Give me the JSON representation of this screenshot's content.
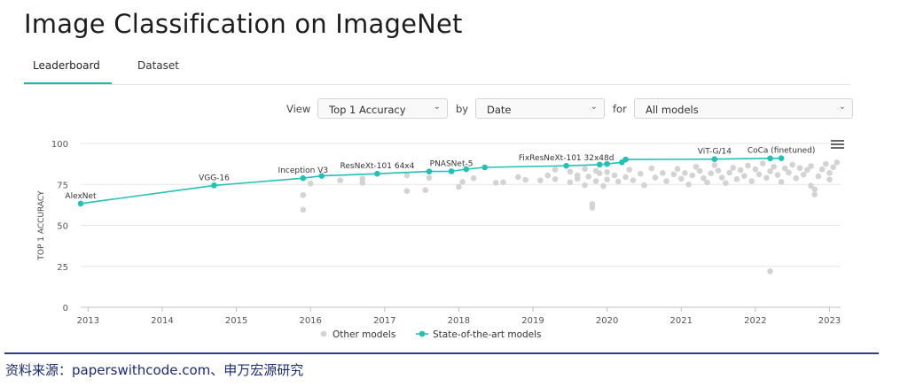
{
  "page": {
    "title": "Image Classification on ImageNet"
  },
  "tabs": [
    {
      "label": "Leaderboard"
    },
    {
      "label": "Dataset"
    }
  ],
  "filters": {
    "view_label": "View",
    "view_value": "Top 1 Accuracy",
    "by_label": "by",
    "by_value": "Date",
    "for_label": "for",
    "for_value": "All models"
  },
  "colors": {
    "sota": "#21c1b5",
    "other": "#d3d3d3",
    "accent": "#1fb8b3",
    "source": "#1b2b70"
  },
  "source": "资料来源：paperswithcode.com、申万宏源研究",
  "chart_data": {
    "type": "scatter",
    "ylabel": "TOP 1 ACCURACY",
    "ylim": [
      0,
      100
    ],
    "yticks": [
      0,
      25,
      50,
      75,
      100
    ],
    "xlim": [
      2012.9,
      2023.15
    ],
    "xticks": [
      "2013",
      "2014",
      "2015",
      "2016",
      "2017",
      "2018",
      "2019",
      "2020",
      "2021",
      "2022",
      "2023"
    ],
    "legend": [
      "Other models",
      "State-of-the-art models"
    ],
    "series": [
      {
        "name": "State-of-the-art models",
        "points": [
          {
            "x": 2012.9,
            "y": 63.3
          },
          {
            "x": 2014.7,
            "y": 74.4
          },
          {
            "x": 2015.9,
            "y": 78.8
          },
          {
            "x": 2016.15,
            "y": 80.2
          },
          {
            "x": 2016.9,
            "y": 81.5
          },
          {
            "x": 2017.6,
            "y": 82.9
          },
          {
            "x": 2017.9,
            "y": 83.0
          },
          {
            "x": 2018.1,
            "y": 84.3
          },
          {
            "x": 2018.35,
            "y": 85.4
          },
          {
            "x": 2019.45,
            "y": 86.4
          },
          {
            "x": 2019.9,
            "y": 87.1
          },
          {
            "x": 2020.0,
            "y": 87.5
          },
          {
            "x": 2020.2,
            "y": 88.5
          },
          {
            "x": 2020.25,
            "y": 90.2
          },
          {
            "x": 2021.45,
            "y": 90.45
          },
          {
            "x": 2022.2,
            "y": 90.9
          },
          {
            "x": 2022.35,
            "y": 91.0
          }
        ],
        "labels": [
          {
            "text": "AlexNet",
            "x": 2012.9,
            "y": 63.3
          },
          {
            "text": "VGG-16",
            "x": 2014.7,
            "y": 74.4
          },
          {
            "text": "Inception V3",
            "x": 2015.9,
            "y": 78.8
          },
          {
            "text": "ResNeXt-101 64x4",
            "x": 2016.9,
            "y": 81.5
          },
          {
            "text": "PNASNet-5",
            "x": 2017.9,
            "y": 83.0
          },
          {
            "text": "FixResNeXt-101 32x48d",
            "x": 2019.45,
            "y": 86.4
          },
          {
            "text": "ViT-G/14",
            "x": 2021.45,
            "y": 90.45
          },
          {
            "text": "CoCa (finetuned)",
            "x": 2022.35,
            "y": 91.0
          }
        ]
      },
      {
        "name": "Other models",
        "points": [
          {
            "x": 2015.9,
            "y": 59.5
          },
          {
            "x": 2015.9,
            "y": 68.5
          },
          {
            "x": 2016.0,
            "y": 75.5
          },
          {
            "x": 2016.4,
            "y": 77.5
          },
          {
            "x": 2016.7,
            "y": 76.0
          },
          {
            "x": 2016.7,
            "y": 78.5
          },
          {
            "x": 2017.3,
            "y": 71.0
          },
          {
            "x": 2017.3,
            "y": 80.5
          },
          {
            "x": 2017.55,
            "y": 71.5
          },
          {
            "x": 2017.6,
            "y": 79.0
          },
          {
            "x": 2018.0,
            "y": 73.5
          },
          {
            "x": 2018.05,
            "y": 76.5
          },
          {
            "x": 2018.2,
            "y": 78.8
          },
          {
            "x": 2018.5,
            "y": 76.0
          },
          {
            "x": 2018.6,
            "y": 76.3
          },
          {
            "x": 2018.8,
            "y": 79.5
          },
          {
            "x": 2018.9,
            "y": 77.8
          },
          {
            "x": 2019.1,
            "y": 77.5
          },
          {
            "x": 2019.2,
            "y": 80.5
          },
          {
            "x": 2019.3,
            "y": 84.0
          },
          {
            "x": 2019.3,
            "y": 78.2
          },
          {
            "x": 2019.5,
            "y": 82.8
          },
          {
            "x": 2019.5,
            "y": 76.3
          },
          {
            "x": 2019.6,
            "y": 80.5
          },
          {
            "x": 2019.6,
            "y": 78.5
          },
          {
            "x": 2019.7,
            "y": 84.5
          },
          {
            "x": 2019.7,
            "y": 74.5
          },
          {
            "x": 2019.75,
            "y": 79.8
          },
          {
            "x": 2019.85,
            "y": 83.2
          },
          {
            "x": 2019.85,
            "y": 77.0
          },
          {
            "x": 2019.8,
            "y": 63.0
          },
          {
            "x": 2019.8,
            "y": 60.8
          },
          {
            "x": 2019.9,
            "y": 81.8
          },
          {
            "x": 2019.95,
            "y": 74.0
          },
          {
            "x": 2020.0,
            "y": 82.5
          },
          {
            "x": 2020.0,
            "y": 78.0
          },
          {
            "x": 2020.1,
            "y": 80.5
          },
          {
            "x": 2020.15,
            "y": 76.8
          },
          {
            "x": 2020.25,
            "y": 79.5
          },
          {
            "x": 2020.3,
            "y": 84.0
          },
          {
            "x": 2020.35,
            "y": 77.5
          },
          {
            "x": 2020.45,
            "y": 81.5
          },
          {
            "x": 2020.5,
            "y": 74.5
          },
          {
            "x": 2020.6,
            "y": 84.8
          },
          {
            "x": 2020.65,
            "y": 79.2
          },
          {
            "x": 2020.75,
            "y": 82.0
          },
          {
            "x": 2020.8,
            "y": 77.0
          },
          {
            "x": 2020.9,
            "y": 81.2
          },
          {
            "x": 2020.95,
            "y": 84.5
          },
          {
            "x": 2021.0,
            "y": 78.5
          },
          {
            "x": 2021.05,
            "y": 82.0
          },
          {
            "x": 2021.1,
            "y": 75.0
          },
          {
            "x": 2021.15,
            "y": 80.5
          },
          {
            "x": 2021.2,
            "y": 85.8
          },
          {
            "x": 2021.25,
            "y": 83.2
          },
          {
            "x": 2021.3,
            "y": 78.8
          },
          {
            "x": 2021.35,
            "y": 76.2
          },
          {
            "x": 2021.4,
            "y": 81.8
          },
          {
            "x": 2021.45,
            "y": 86.8
          },
          {
            "x": 2021.5,
            "y": 83.5
          },
          {
            "x": 2021.55,
            "y": 79.2
          },
          {
            "x": 2021.6,
            "y": 75.8
          },
          {
            "x": 2021.65,
            "y": 82.2
          },
          {
            "x": 2021.7,
            "y": 85.2
          },
          {
            "x": 2021.75,
            "y": 78.2
          },
          {
            "x": 2021.8,
            "y": 83.8
          },
          {
            "x": 2021.85,
            "y": 80.2
          },
          {
            "x": 2021.9,
            "y": 86.5
          },
          {
            "x": 2021.95,
            "y": 77.0
          },
          {
            "x": 2022.0,
            "y": 84.2
          },
          {
            "x": 2022.05,
            "y": 81.2
          },
          {
            "x": 2022.1,
            "y": 87.8
          },
          {
            "x": 2022.15,
            "y": 79.0
          },
          {
            "x": 2022.2,
            "y": 83.0
          },
          {
            "x": 2022.25,
            "y": 85.8
          },
          {
            "x": 2022.3,
            "y": 80.8
          },
          {
            "x": 2022.35,
            "y": 76.5
          },
          {
            "x": 2022.4,
            "y": 84.8
          },
          {
            "x": 2022.45,
            "y": 82.2
          },
          {
            "x": 2022.5,
            "y": 87.0
          },
          {
            "x": 2022.55,
            "y": 78.8
          },
          {
            "x": 2022.6,
            "y": 85.0
          },
          {
            "x": 2022.65,
            "y": 81.0
          },
          {
            "x": 2022.7,
            "y": 83.8
          },
          {
            "x": 2022.75,
            "y": 86.2
          },
          {
            "x": 2022.75,
            "y": 74.2
          },
          {
            "x": 2022.8,
            "y": 72.0
          },
          {
            "x": 2022.8,
            "y": 68.8
          },
          {
            "x": 2022.85,
            "y": 80.0
          },
          {
            "x": 2022.9,
            "y": 84.2
          },
          {
            "x": 2022.95,
            "y": 87.5
          },
          {
            "x": 2023.0,
            "y": 82.0
          },
          {
            "x": 2023.0,
            "y": 78.0
          },
          {
            "x": 2023.05,
            "y": 85.5
          },
          {
            "x": 2023.1,
            "y": 88.5
          },
          {
            "x": 2022.2,
            "y": 22.0
          }
        ]
      }
    ]
  }
}
